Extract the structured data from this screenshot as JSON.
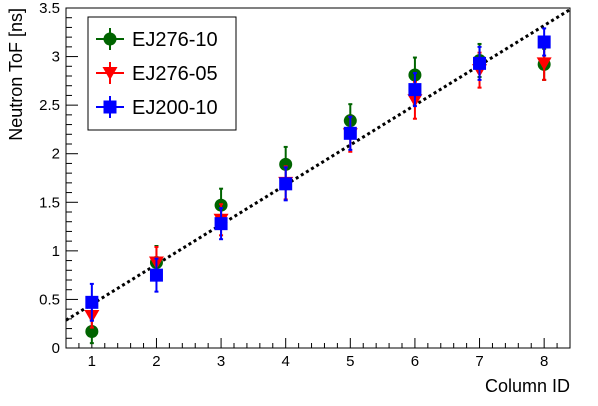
{
  "chart_data": {
    "type": "scatter",
    "title": "",
    "xlabel": "Column ID",
    "ylabel": "Neutron ToF [ns]",
    "xlim": [
      0.6,
      8.4
    ],
    "ylim": [
      0,
      3.5
    ],
    "x_ticks": [
      "1",
      "2",
      "3",
      "4",
      "5",
      "6",
      "7",
      "8"
    ],
    "y_ticks": [
      "0",
      "0.5",
      "1",
      "1.5",
      "2",
      "2.5",
      "3",
      "3.5"
    ],
    "grid": false,
    "legend_position": "top-left",
    "x": [
      1,
      2,
      3,
      4,
      5,
      6,
      7,
      8
    ],
    "series": [
      {
        "name": "EJ276-10",
        "marker": "circle",
        "color": "#006400",
        "values": [
          0.17,
          0.88,
          1.47,
          1.89,
          2.34,
          2.81,
          2.96,
          2.92
        ],
        "errors": [
          0.12,
          0.17,
          0.17,
          0.18,
          0.17,
          0.18,
          0.17,
          0.16
        ]
      },
      {
        "name": "EJ276-05",
        "marker": "triangle-down",
        "color": "#ff0000",
        "values": [
          0.33,
          0.88,
          1.32,
          1.7,
          2.2,
          2.55,
          2.86,
          2.93
        ],
        "errors": [
          0.12,
          0.16,
          0.16,
          0.17,
          0.18,
          0.19,
          0.18,
          0.17
        ]
      },
      {
        "name": "EJ200-10",
        "marker": "square",
        "color": "#0000ff",
        "values": [
          0.47,
          0.75,
          1.28,
          1.69,
          2.21,
          2.66,
          2.93,
          3.15
        ],
        "errors": [
          0.19,
          0.17,
          0.16,
          0.17,
          0.17,
          0.17,
          0.17,
          0.14
        ]
      }
    ],
    "fit_line": {
      "style": "dotted",
      "color": "#000000",
      "intercept": 0.04,
      "slope": 0.41
    }
  }
}
